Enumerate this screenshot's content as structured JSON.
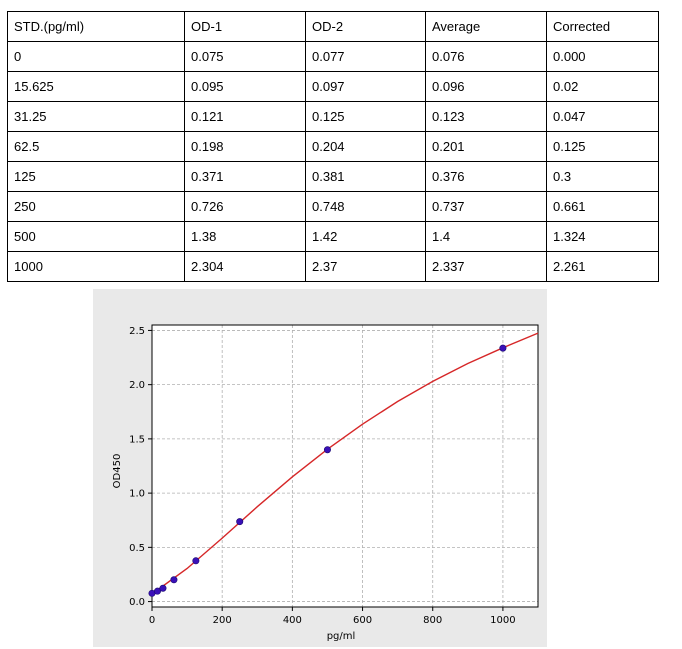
{
  "table": {
    "headers": [
      "STD.(pg/ml)",
      "OD-1",
      "OD-2",
      "Average",
      "Corrected"
    ],
    "rows": [
      [
        "0",
        "0.075",
        "0.077",
        "0.076",
        "0.000"
      ],
      [
        "15.625",
        "0.095",
        "0.097",
        "0.096",
        "0.02"
      ],
      [
        "31.25",
        "0.121",
        "0.125",
        "0.123",
        "0.047"
      ],
      [
        "62.5",
        "0.198",
        "0.204",
        "0.201",
        "0.125"
      ],
      [
        "125",
        "0.371",
        "0.381",
        "0.376",
        "0.3"
      ],
      [
        "250",
        "0.726",
        "0.748",
        "0.737",
        "0.661"
      ],
      [
        "500",
        "1.38",
        "1.42",
        "1.4",
        "1.324"
      ],
      [
        "1000",
        "2.304",
        "2.37",
        "2.337",
        "2.261"
      ]
    ]
  },
  "colors": {
    "panel_background": "#e9e9e9",
    "plot_background": "#ffffff",
    "curve": "#d62728",
    "points": "#3a10b8",
    "grid": "#b0b0b0"
  },
  "chart_data": {
    "type": "scatter",
    "xlabel": "pg/ml",
    "ylabel": "OD450",
    "xlim": [
      0,
      1100
    ],
    "ylim": [
      -0.05,
      2.55
    ],
    "xticks": [
      0,
      200,
      400,
      600,
      800,
      1000
    ],
    "yticks": [
      0.0,
      0.5,
      1.0,
      1.5,
      2.0,
      2.5
    ],
    "xtick_labels": [
      "0",
      "200",
      "400",
      "600",
      "800",
      "1000"
    ],
    "ytick_labels": [
      "0.0",
      "0.5",
      "1.0",
      "1.5",
      "2.0",
      "2.5"
    ],
    "grid": true,
    "grid_style": "dashed",
    "points": {
      "x": [
        0,
        15.625,
        31.25,
        62.5,
        125,
        250,
        500,
        1000
      ],
      "y": [
        0.076,
        0.096,
        0.123,
        0.201,
        0.376,
        0.737,
        1.4,
        2.337
      ]
    },
    "fit_curve": {
      "x": [
        0,
        100,
        200,
        300,
        400,
        500,
        600,
        700,
        800,
        900,
        1000,
        1100
      ],
      "y": [
        0.07,
        0.305,
        0.585,
        0.875,
        1.15,
        1.405,
        1.635,
        1.845,
        2.03,
        2.195,
        2.34,
        2.475
      ]
    }
  }
}
